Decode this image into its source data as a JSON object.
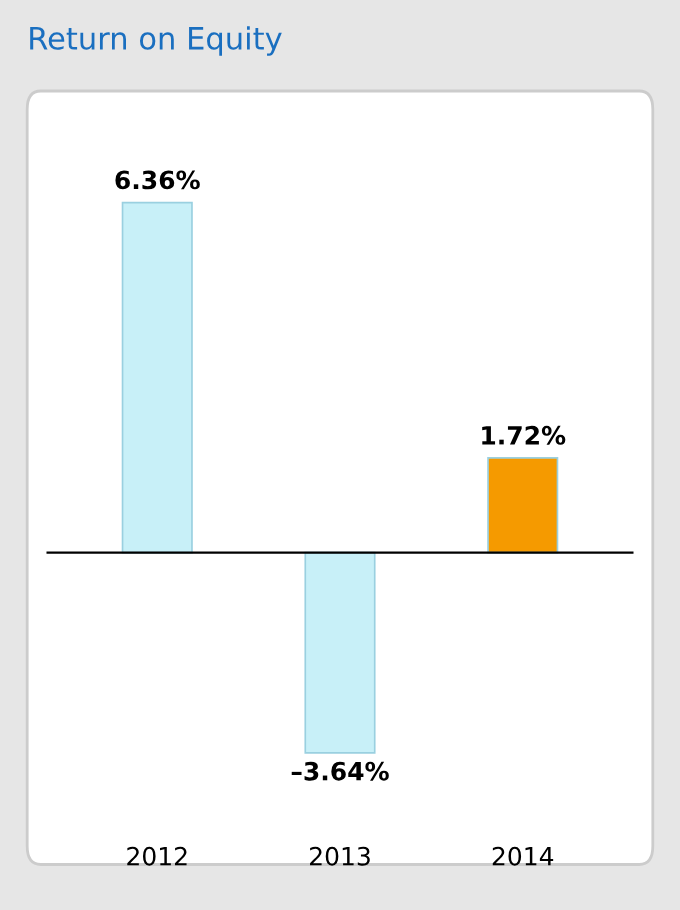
{
  "chart_data": {
    "type": "bar",
    "title": "Return on Equity",
    "categories": [
      "2012",
      "2013",
      "2014"
    ],
    "values": [
      6.36,
      -3.64,
      1.72
    ],
    "colors": [
      "#c8f0f8",
      "#c8f0f8",
      "#f59a00"
    ],
    "value_labels": [
      "6.36%",
      "–3.64%",
      "1.72%"
    ]
  }
}
